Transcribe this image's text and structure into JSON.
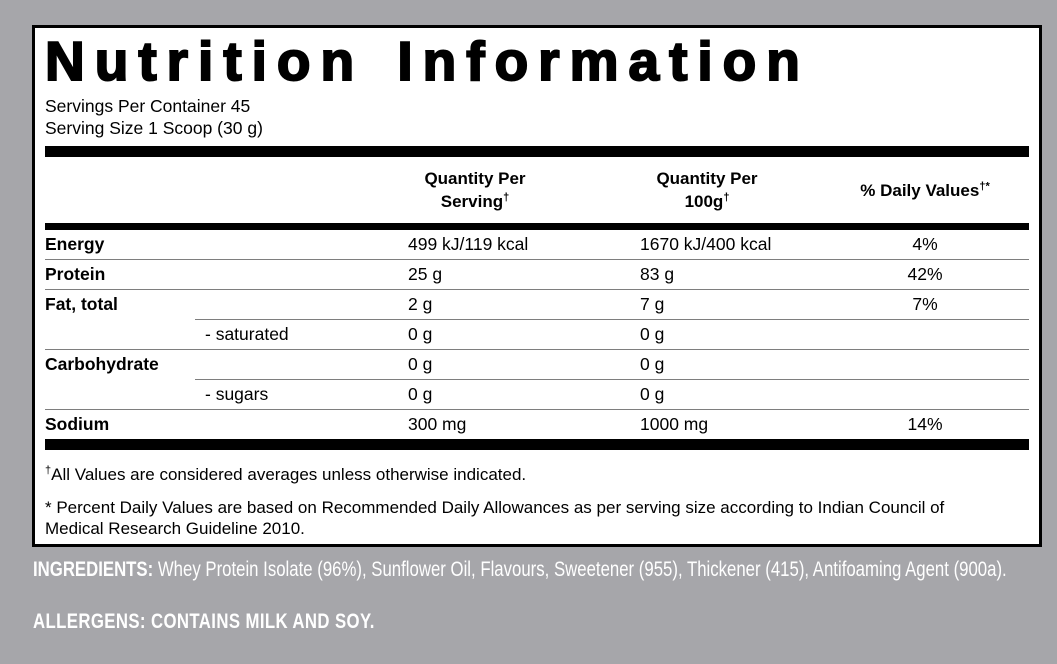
{
  "colors": {
    "background": "#a6a6aa",
    "panel": "#ffffff",
    "text": "#000000",
    "inverse_text": "#ffffff"
  },
  "panel": {
    "title": "Nutrition Information",
    "servings_per_container": "Servings Per Container 45",
    "serving_size": "Serving Size 1 Scoop (30 g)"
  },
  "table": {
    "headers": {
      "serving": {
        "line1": "Quantity Per",
        "line2": "Serving",
        "sup": "†"
      },
      "per100g": {
        "line1": "Quantity Per",
        "line2": "100g",
        "sup": "†"
      },
      "daily_values": {
        "text": "% Daily Values",
        "sup": "†*"
      }
    },
    "rows": [
      {
        "name": "Energy",
        "serving": "499 kJ/119 kcal",
        "per100g": "1670 kJ/400 kcal",
        "daily_value": "4%"
      },
      {
        "name": "Protein",
        "serving": "25 g",
        "per100g": "83 g",
        "daily_value": "42%"
      },
      {
        "name": "Fat, total",
        "serving": "2 g",
        "per100g": "7 g",
        "daily_value": "7%"
      },
      {
        "name": "- saturated",
        "serving": "0 g",
        "per100g": "0 g",
        "daily_value": ""
      },
      {
        "name": "Carbohydrate",
        "serving": "0 g",
        "per100g": "0 g",
        "daily_value": ""
      },
      {
        "name": "- sugars",
        "serving": "0 g",
        "per100g": "0 g",
        "daily_value": ""
      },
      {
        "name": "Sodium",
        "serving": "300 mg",
        "per100g": "1000 mg",
        "daily_value": "14%"
      }
    ]
  },
  "footnotes": {
    "fn1_marker": "†",
    "fn1": "All Values are considered averages unless otherwise indicated.",
    "fn2": "* Percent Daily Values are based on Recommended Daily Allowances as per serving size according to Indian Council of Medical Research Guideline 2010."
  },
  "below_panel": {
    "ingredients_label": "INGREDIENTS:",
    "ingredients_text": " Whey Protein Isolate (96%), Sunflower Oil, Flavours, Sweetener (955), Thickener (415), Antifoaming Agent (900a).",
    "allergens": "ALLERGENS: CONTAINS MILK AND SOY."
  }
}
